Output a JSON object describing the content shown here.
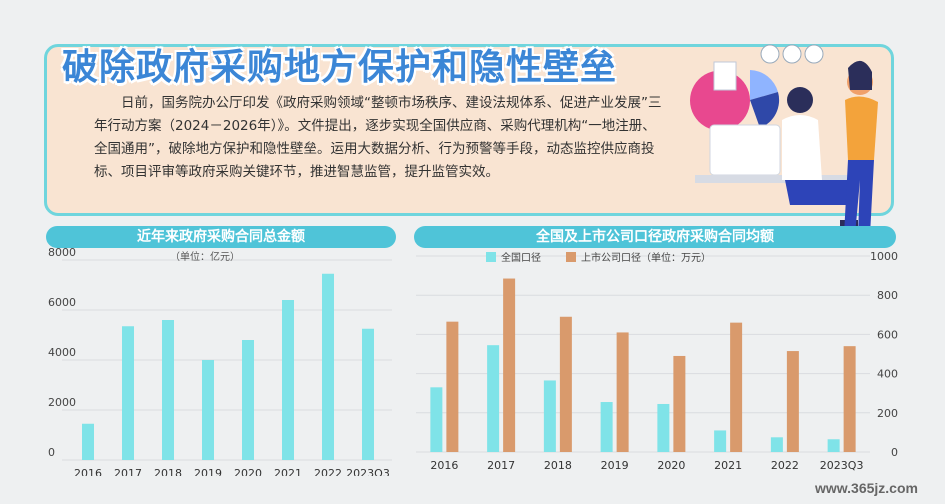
{
  "header": {
    "title": "破除政府采购地方保护和隐性壁垒",
    "body": "日前，国务院办公厅印发《政府采购领域“整顿市场秩序、建设法规体系、促进产业发展”三年行动方案（2024－2026年）》。文件提出，逐步实现全国供应商、采购代理机构“一地注册、全国通用”，破除地方保护和隐性壁垒。运用大数据分析、行为预警等手段，动态监控供应商投标、项目评审等政府采购关键环节，推进智慧监管，提升监管实效。"
  },
  "watermark": "www.365jz.com",
  "colors": {
    "cyan": "#7fe3e8",
    "orange": "#d99a6c",
    "title_bar": "#4fc4d8",
    "headline": "#3b86d6"
  },
  "chart_data": [
    {
      "type": "bar",
      "title": "近年来政府采购合同总金额",
      "unit_note": "（单位：亿元）",
      "categories": [
        "2016",
        "2017",
        "2018",
        "2019",
        "2020",
        "2021",
        "2022",
        "2023Q3"
      ],
      "values": [
        1450,
        5350,
        5600,
        4000,
        4800,
        6400,
        7450,
        5250
      ],
      "yticks": [
        0,
        2000,
        4000,
        6000,
        8000
      ],
      "ylim": [
        0,
        8000
      ],
      "color": "#7fe3e8"
    },
    {
      "type": "bar",
      "title": "全国及上市公司口径政府采购合同均额",
      "categories": [
        "2016",
        "2017",
        "2018",
        "2019",
        "2020",
        "2021",
        "2022",
        "2023Q3"
      ],
      "ylim": [
        0,
        1000
      ],
      "yticks": [
        0,
        200,
        400,
        600,
        800,
        1000
      ],
      "series": [
        {
          "name": "全国口径",
          "values": [
            330,
            545,
            365,
            255,
            245,
            110,
            75,
            65
          ],
          "color": "#7fe3e8"
        },
        {
          "name": "上市公司口径（单位：万元）",
          "values": [
            665,
            885,
            690,
            610,
            490,
            660,
            515,
            540
          ],
          "color": "#d99a6c"
        }
      ]
    }
  ]
}
